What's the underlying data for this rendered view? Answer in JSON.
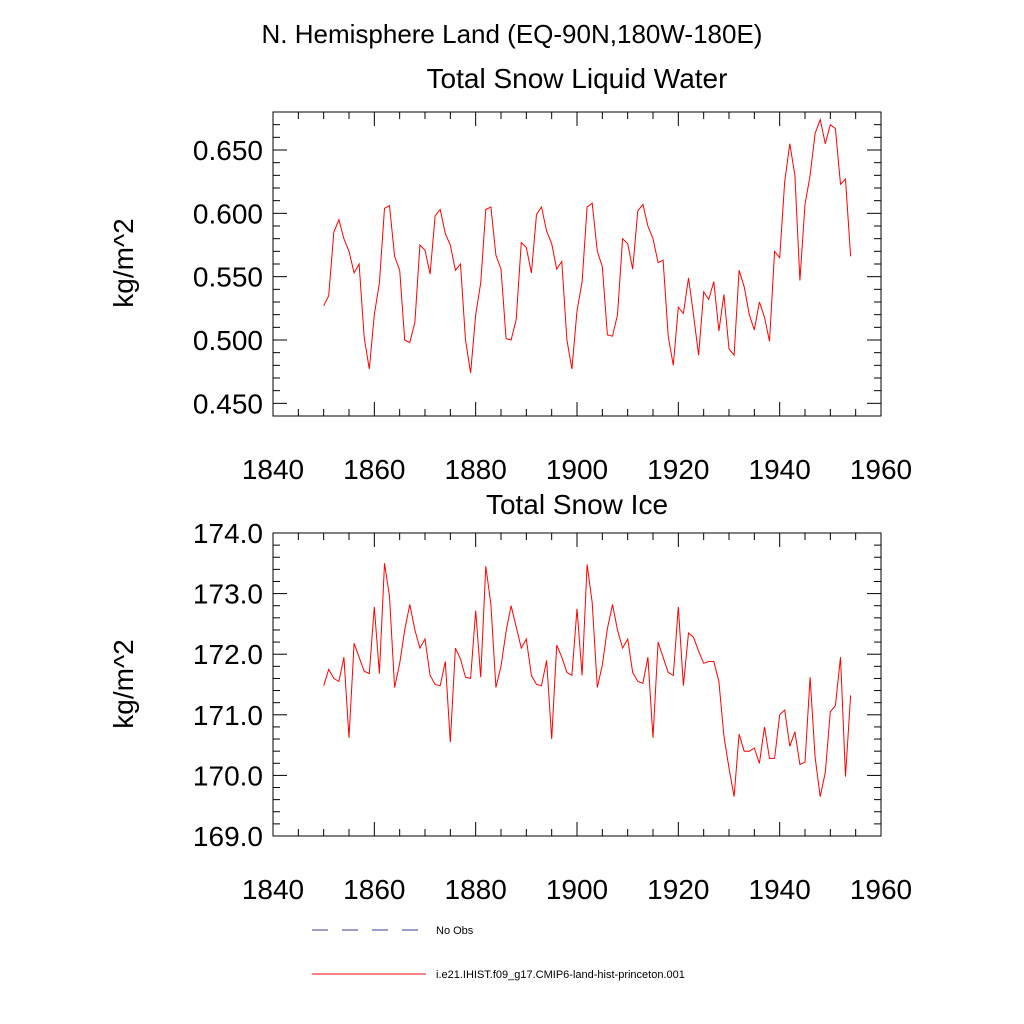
{
  "region_title": "N. Hemisphere Land (EQ-90N,180W-180E)",
  "colors": {
    "model_line": "#ff0000",
    "obs_line": "#3a3a9a",
    "axis": "#000000"
  },
  "legend": {
    "obs_label": "No Obs",
    "model_label": "i.e21.IHIST.f09_g17.CMIP6-land-hist-princeton.001"
  },
  "chart_data": [
    {
      "type": "line",
      "title": "Total Snow Liquid Water",
      "xlabel": "",
      "ylabel": "kg/m^2",
      "xlim": [
        1840,
        1960
      ],
      "ylim": [
        0.44,
        0.68
      ],
      "xticks": [
        1840,
        1860,
        1880,
        1900,
        1920,
        1940,
        1960
      ],
      "xtick_labels": [
        "1840",
        "1860",
        "1880",
        "1900",
        "1920",
        "1940",
        "1960"
      ],
      "yticks": [
        0.45,
        0.5,
        0.55,
        0.6,
        0.65
      ],
      "ytick_labels": [
        "0.450",
        "0.500",
        "0.550",
        "0.600",
        "0.650"
      ],
      "grid": false,
      "series": [
        {
          "name": "i.e21.IHIST.f09_g17.CMIP6-land-hist-princeton.001",
          "x": [
            1850,
            1851,
            1852,
            1853,
            1854,
            1855,
            1856,
            1857,
            1858,
            1859,
            1860,
            1861,
            1862,
            1863,
            1864,
            1865,
            1866,
            1867,
            1868,
            1869,
            1870,
            1871,
            1872,
            1873,
            1874,
            1875,
            1876,
            1877,
            1878,
            1879,
            1880,
            1881,
            1882,
            1883,
            1884,
            1885,
            1886,
            1887,
            1888,
            1889,
            1890,
            1891,
            1892,
            1893,
            1894,
            1895,
            1896,
            1897,
            1898,
            1899,
            1900,
            1901,
            1902,
            1903,
            1904,
            1905,
            1906,
            1907,
            1908,
            1909,
            1910,
            1911,
            1912,
            1913,
            1914,
            1915,
            1916,
            1917,
            1918,
            1919,
            1920,
            1921,
            1922,
            1923,
            1924,
            1925,
            1926,
            1927,
            1928,
            1929,
            1930,
            1931,
            1932,
            1933,
            1934,
            1935,
            1936,
            1937,
            1938,
            1939,
            1940,
            1941,
            1942,
            1943,
            1944,
            1945,
            1946,
            1947,
            1948,
            1949,
            1950,
            1951,
            1952,
            1953,
            1954
          ],
          "values": [
            0.527,
            0.535,
            0.585,
            0.595,
            0.58,
            0.57,
            0.553,
            0.56,
            0.502,
            0.477,
            0.52,
            0.545,
            0.604,
            0.606,
            0.566,
            0.555,
            0.5,
            0.498,
            0.514,
            0.575,
            0.571,
            0.552,
            0.598,
            0.603,
            0.584,
            0.575,
            0.555,
            0.56,
            0.5,
            0.474,
            0.52,
            0.545,
            0.603,
            0.605,
            0.567,
            0.556,
            0.501,
            0.5,
            0.516,
            0.577,
            0.573,
            0.553,
            0.599,
            0.605,
            0.586,
            0.576,
            0.556,
            0.562,
            0.5,
            0.477,
            0.523,
            0.546,
            0.605,
            0.608,
            0.57,
            0.558,
            0.504,
            0.503,
            0.52,
            0.58,
            0.576,
            0.556,
            0.602,
            0.607,
            0.59,
            0.58,
            0.561,
            0.563,
            0.503,
            0.48,
            0.526,
            0.521,
            0.549,
            0.52,
            0.488,
            0.538,
            0.532,
            0.546,
            0.507,
            0.536,
            0.493,
            0.488,
            0.555,
            0.542,
            0.52,
            0.508,
            0.53,
            0.518,
            0.499,
            0.57,
            0.565,
            0.625,
            0.655,
            0.63,
            0.547,
            0.607,
            0.63,
            0.663,
            0.674,
            0.655,
            0.67,
            0.667,
            0.623,
            0.627,
            0.566
          ]
        }
      ]
    },
    {
      "type": "line",
      "title": "Total Snow Ice",
      "xlabel": "",
      "ylabel": "kg/m^2",
      "xlim": [
        1840,
        1960
      ],
      "ylim": [
        169.0,
        174.0
      ],
      "xticks": [
        1840,
        1860,
        1880,
        1900,
        1920,
        1940,
        1960
      ],
      "xtick_labels": [
        "1840",
        "1860",
        "1880",
        "1900",
        "1920",
        "1940",
        "1960"
      ],
      "yticks": [
        169.0,
        170.0,
        171.0,
        172.0,
        173.0,
        174.0
      ],
      "ytick_labels": [
        "169.0",
        "170.0",
        "171.0",
        "172.0",
        "173.0",
        "174.0"
      ],
      "grid": false,
      "series": [
        {
          "name": "i.e21.IHIST.f09_g17.CMIP6-land-hist-princeton.001",
          "x": [
            1850,
            1851,
            1852,
            1853,
            1854,
            1855,
            1856,
            1857,
            1858,
            1859,
            1860,
            1861,
            1862,
            1863,
            1864,
            1865,
            1866,
            1867,
            1868,
            1869,
            1870,
            1871,
            1872,
            1873,
            1874,
            1875,
            1876,
            1877,
            1878,
            1879,
            1880,
            1881,
            1882,
            1883,
            1884,
            1885,
            1886,
            1887,
            1888,
            1889,
            1890,
            1891,
            1892,
            1893,
            1894,
            1895,
            1896,
            1897,
            1898,
            1899,
            1900,
            1901,
            1902,
            1903,
            1904,
            1905,
            1906,
            1907,
            1908,
            1909,
            1910,
            1911,
            1912,
            1913,
            1914,
            1915,
            1916,
            1917,
            1918,
            1919,
            1920,
            1921,
            1922,
            1923,
            1924,
            1925,
            1926,
            1927,
            1928,
            1929,
            1930,
            1931,
            1932,
            1933,
            1934,
            1935,
            1936,
            1937,
            1938,
            1939,
            1940,
            1941,
            1942,
            1943,
            1944,
            1945,
            1946,
            1947,
            1948,
            1949,
            1950,
            1951,
            1952,
            1953,
            1954
          ],
          "values": [
            171.48,
            171.75,
            171.6,
            171.55,
            171.95,
            170.62,
            172.18,
            171.95,
            171.72,
            171.68,
            172.78,
            171.68,
            173.5,
            172.95,
            171.45,
            171.85,
            172.4,
            172.82,
            172.4,
            172.1,
            172.25,
            171.65,
            171.5,
            171.48,
            171.88,
            170.55,
            172.1,
            171.92,
            171.62,
            171.6,
            172.72,
            171.62,
            173.45,
            172.82,
            171.45,
            171.8,
            172.38,
            172.8,
            172.45,
            172.1,
            172.25,
            171.65,
            171.5,
            171.48,
            171.9,
            170.6,
            172.15,
            171.95,
            171.7,
            171.65,
            172.75,
            171.65,
            173.48,
            172.85,
            171.45,
            171.82,
            172.42,
            172.82,
            172.4,
            172.1,
            172.25,
            171.7,
            171.55,
            171.52,
            171.95,
            170.62,
            172.2,
            171.95,
            171.7,
            171.65,
            172.78,
            171.48,
            172.35,
            172.28,
            172.05,
            171.85,
            171.88,
            171.88,
            171.55,
            170.65,
            170.12,
            169.65,
            170.68,
            170.4,
            170.4,
            170.45,
            170.2,
            170.8,
            170.28,
            170.28,
            171.0,
            171.08,
            170.48,
            170.72,
            170.18,
            170.22,
            171.62,
            170.3,
            169.65,
            170.05,
            171.05,
            171.15,
            171.95,
            169.98,
            171.32
          ]
        }
      ]
    }
  ]
}
